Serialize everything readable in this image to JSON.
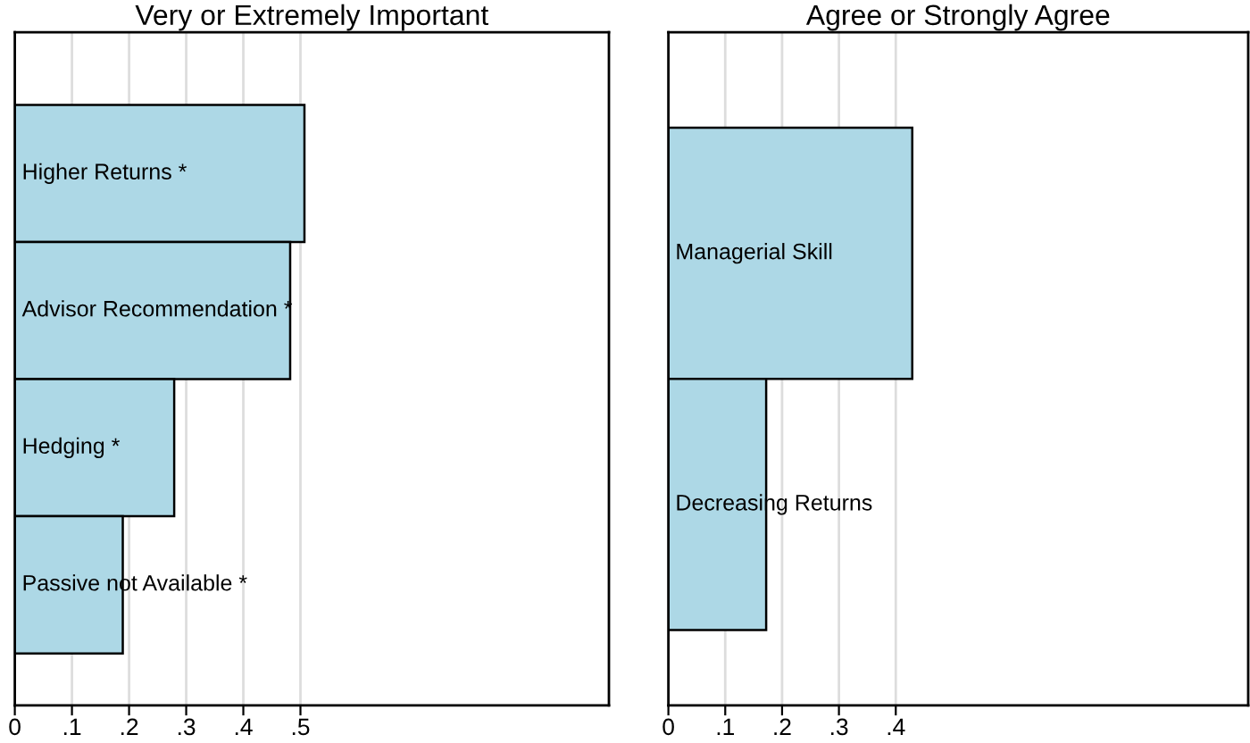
{
  "chart_data": [
    {
      "type": "bar",
      "orientation": "horizontal",
      "title": "Very or Extremely Important",
      "categories": [
        "Higher Returns *",
        "Advisor Recommendation *",
        "Hedging *",
        "Passive not Available *"
      ],
      "values": [
        0.507,
        0.482,
        0.279,
        0.189
      ],
      "color": "#add8e6",
      "xlim": [
        0,
        1.04
      ],
      "xticks": [
        0,
        {
          "value": 0.1,
          "label": ".1"
        },
        {
          "value": 0.2,
          "label": ".2"
        },
        {
          "value": 0.3,
          "label": ".3"
        },
        {
          "value": 0.4,
          "label": ".4"
        },
        {
          "value": 0.5,
          "label": ".5"
        }
      ],
      "grid": "x"
    },
    {
      "type": "bar",
      "orientation": "horizontal",
      "title": "Agree or Strongly Agree",
      "categories": [
        "Managerial Skill",
        "Decreasing Returns"
      ],
      "values": [
        0.429,
        0.172
      ],
      "color": "#add8e6",
      "xlim": [
        0,
        1.02
      ],
      "xticks": [
        0,
        {
          "value": 0.1,
          "label": ".1"
        },
        {
          "value": 0.2,
          "label": ".2"
        },
        {
          "value": 0.3,
          "label": ".3"
        },
        {
          "value": 0.4,
          "label": ".4"
        }
      ],
      "grid": "x"
    }
  ]
}
